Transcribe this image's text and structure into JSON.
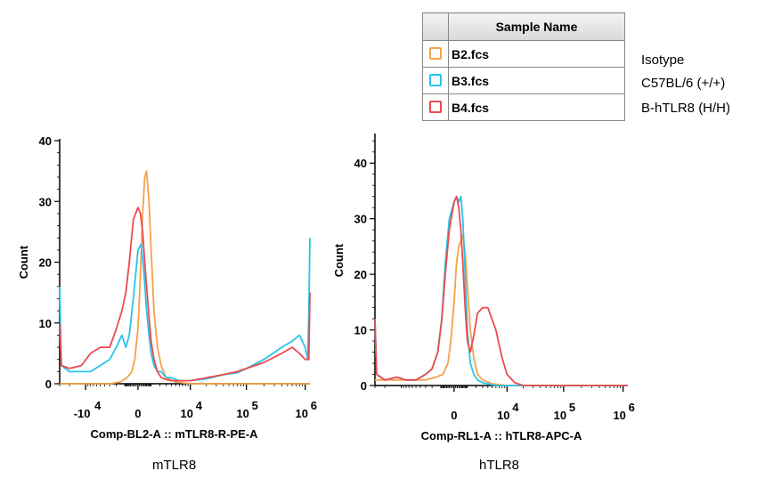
{
  "legend": {
    "header": "Sample Name",
    "items": [
      {
        "file": "B2.fcs",
        "color": "#f5a24a",
        "description": "Isotype"
      },
      {
        "file": "B3.fcs",
        "color": "#28c4ea",
        "description": "C57BL/6 (+/+)"
      },
      {
        "file": "B4.fcs",
        "color": "#ec4a4f",
        "description": "B-hTLR8  (H/H)"
      }
    ]
  },
  "captions": {
    "left": "mTLR8",
    "right": "hTLR8"
  },
  "chart_data": [
    {
      "type": "line",
      "xlabel": "Comp-BL2-A :: mTLR8-R-PE-A",
      "ylabel": "Count",
      "xscale": "logicle",
      "xlim": [
        -30000,
        1200000
      ],
      "ylim": [
        0,
        40
      ],
      "y_ticks": [
        0,
        10,
        20,
        30,
        40
      ],
      "x_ticks": [
        {
          "base": "-10",
          "exp": "4",
          "value": -10000
        },
        {
          "base": "0",
          "exp": "",
          "value": 0
        },
        {
          "base": "10",
          "exp": "4",
          "value": 10000
        },
        {
          "base": "10",
          "exp": "5",
          "value": 100000
        },
        {
          "base": "10",
          "exp": "6",
          "value": 1000000
        }
      ],
      "grid": false,
      "series": [
        {
          "name": "B2.fcs",
          "color": "#f5a24a",
          "x": [
            -30000,
            -10000,
            -3000,
            -1500,
            -800,
            -400,
            -200,
            0,
            150,
            300,
            450,
            600,
            800,
            1000,
            1300,
            1700,
            2200,
            3000,
            5000,
            10000,
            100000,
            1200000
          ],
          "y": [
            0,
            0,
            0,
            0.3,
            1,
            2,
            4,
            9,
            18,
            28,
            34,
            35,
            30,
            22,
            12,
            6,
            3,
            1,
            0.3,
            0,
            0,
            0
          ]
        },
        {
          "name": "B3.fcs",
          "color": "#28c4ea",
          "x": [
            -30000,
            -28000,
            -20000,
            -12000,
            -8000,
            -5000,
            -3000,
            -2000,
            -1300,
            -900,
            -600,
            -300,
            0,
            200,
            400,
            600,
            800,
            1000,
            1300,
            1700,
            2200,
            3000,
            4000,
            6000,
            10000,
            20000,
            40000,
            70000,
            100000,
            200000,
            400000,
            600000,
            800000,
            1000000,
            1100000,
            1150000,
            1200000
          ],
          "y": [
            16,
            3,
            2,
            2,
            2,
            3,
            4,
            6,
            8,
            6,
            8,
            14,
            22,
            23,
            18,
            12,
            8,
            5,
            3,
            2,
            2,
            1,
            1,
            0.5,
            0.5,
            0.8,
            1.5,
            1.8,
            2.5,
            4,
            6,
            7,
            8,
            6,
            4,
            12,
            24
          ]
        },
        {
          "name": "B4.fcs",
          "color": "#ec4a4f",
          "x": [
            -30000,
            -28000,
            -20000,
            -12000,
            -8000,
            -5000,
            -3000,
            -2000,
            -1300,
            -900,
            -600,
            -300,
            0,
            150,
            300,
            450,
            600,
            800,
            1000,
            1300,
            1700,
            2200,
            3000,
            4000,
            6000,
            10000,
            20000,
            40000,
            70000,
            100000,
            200000,
            400000,
            600000,
            800000,
            1000000,
            1150000,
            1200000
          ],
          "y": [
            10,
            3,
            2.5,
            3,
            5,
            6,
            6,
            9,
            12,
            15,
            20,
            27,
            29,
            28,
            25,
            20,
            16,
            11,
            7,
            4,
            2,
            1,
            0.7,
            0.5,
            0.5,
            0.5,
            1,
            1.5,
            2,
            2.5,
            3.5,
            5,
            6,
            5,
            4,
            4,
            15
          ]
        }
      ]
    },
    {
      "type": "line",
      "xlabel": "Comp-RL1-A :: hTLR8-APC-A",
      "ylabel": "Count",
      "xscale": "logicle",
      "xlim": [
        -30000,
        1200000
      ],
      "ylim": [
        0,
        45
      ],
      "y_ticks": [
        0,
        10,
        20,
        30,
        40
      ],
      "x_ticks": [
        {
          "base": "0",
          "exp": "",
          "value": 0
        },
        {
          "base": "10",
          "exp": "4",
          "value": 10000
        },
        {
          "base": "10",
          "exp": "5",
          "value": 100000
        },
        {
          "base": "10",
          "exp": "6",
          "value": 1000000
        }
      ],
      "grid": false,
      "series": [
        {
          "name": "B2.fcs",
          "color": "#f5a24a",
          "x": [
            -30000,
            -10000,
            -3000,
            -1500,
            -800,
            -400,
            -200,
            0,
            150,
            300,
            450,
            600,
            800,
            1000,
            1300,
            1700,
            2200,
            3000,
            5000,
            10000,
            100000,
            1200000
          ],
          "y": [
            1,
            1,
            1,
            1.5,
            2,
            4,
            8,
            15,
            22,
            25,
            26,
            27,
            24,
            18,
            10,
            5,
            2,
            1,
            0.3,
            0,
            0,
            0
          ]
        },
        {
          "name": "B3.fcs",
          "color": "#28c4ea",
          "x": [
            -30000,
            -28000,
            -20000,
            -12000,
            -8000,
            -5000,
            -3000,
            -2000,
            -1300,
            -900,
            -600,
            -300,
            0,
            150,
            300,
            450,
            600,
            800,
            1000,
            1300,
            1700,
            2200,
            3000,
            4000,
            6000,
            10000,
            100000,
            1200000
          ],
          "y": [
            12,
            2,
            1,
            1.5,
            1,
            1,
            2,
            3,
            6,
            12,
            22,
            30,
            33,
            34,
            33,
            34,
            30,
            20,
            10,
            4,
            2,
            1,
            0.5,
            0.3,
            0,
            0,
            0,
            0
          ]
        },
        {
          "name": "B4.fcs",
          "color": "#ec4a4f",
          "x": [
            -30000,
            -28000,
            -20000,
            -12000,
            -8000,
            -5000,
            -3000,
            -2000,
            -1300,
            -900,
            -600,
            -300,
            0,
            150,
            300,
            450,
            600,
            800,
            1000,
            1300,
            1700,
            2200,
            3000,
            4000,
            6000,
            8000,
            10000,
            14000,
            20000,
            40000,
            100000,
            1200000
          ],
          "y": [
            12,
            2,
            1,
            1.5,
            1,
            1,
            2,
            3,
            6,
            12,
            20,
            28,
            33,
            34,
            32,
            28,
            22,
            14,
            8,
            6,
            9,
            13,
            14,
            14,
            10,
            5,
            2,
            0.5,
            0,
            0,
            0,
            0
          ]
        }
      ]
    }
  ]
}
